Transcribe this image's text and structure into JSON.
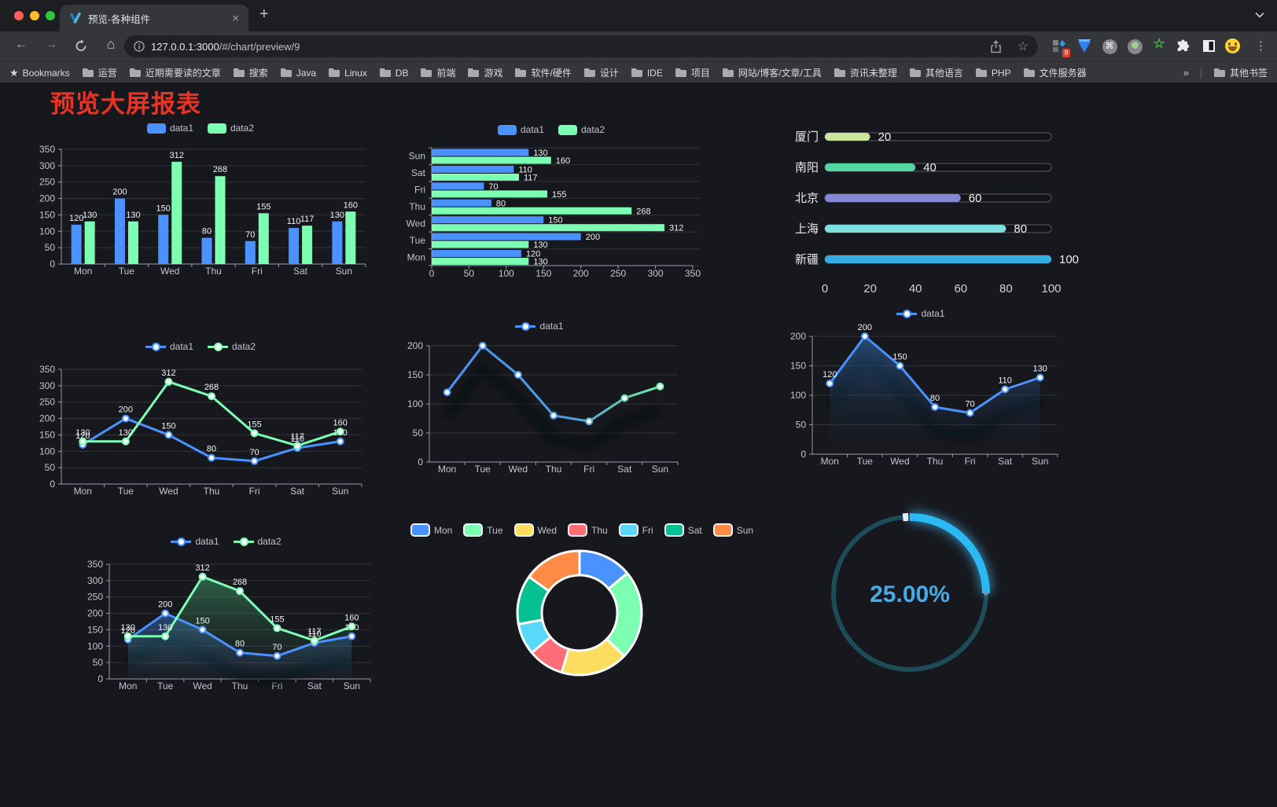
{
  "browser": {
    "tab": {
      "title": "预览-各种组件",
      "close": "×"
    },
    "new_tab": "+",
    "nav": {
      "back": "←",
      "forward": "→",
      "home": "⌂"
    },
    "address": {
      "host": "127.0.0.1:3000",
      "path": "/#/chart/preview/9"
    },
    "extensions_badge": "9",
    "ext_command": "⌘",
    "ext_star": "☆",
    "menu": "⋮",
    "bookmarks": {
      "label": "Bookmarks",
      "star": "★",
      "items": [
        "运营",
        "近期需要读的文章",
        "搜索",
        "Java",
        "Linux",
        "DB",
        "前端",
        "游戏",
        "软件/硬件",
        "设计",
        "IDE",
        "项目",
        "网站/博客/文章/工具",
        "资讯未整理",
        "其他语言",
        "PHP",
        "文件服务器"
      ],
      "overflow": "»",
      "other": "其他书签"
    }
  },
  "page": {
    "title": "预览大屏报表"
  },
  "chart_data": [
    {
      "id": "c1",
      "type": "bar",
      "legend_position": "top",
      "categories": [
        "Mon",
        "Tue",
        "Wed",
        "Thu",
        "Fri",
        "Sat",
        "Sun"
      ],
      "series": [
        {
          "name": "data1",
          "color": "#4992ff",
          "values": [
            120,
            200,
            150,
            80,
            70,
            110,
            130
          ]
        },
        {
          "name": "data2",
          "color": "#7cffb2",
          "values": [
            130,
            130,
            312,
            268,
            155,
            117,
            160
          ]
        }
      ],
      "ylim": [
        0,
        350
      ],
      "ytick_step": 50
    },
    {
      "id": "c2",
      "type": "bar-horizontal",
      "legend_position": "top",
      "categories": [
        "Mon",
        "Tue",
        "Wed",
        "Thu",
        "Fri",
        "Sat",
        "Sun"
      ],
      "series": [
        {
          "name": "data1",
          "color": "#4992ff",
          "values": [
            120,
            200,
            150,
            80,
            70,
            110,
            130
          ]
        },
        {
          "name": "data2",
          "color": "#7cffb2",
          "values": [
            130,
            130,
            312,
            268,
            155,
            117,
            160
          ]
        }
      ],
      "xlim": [
        0,
        350
      ],
      "xtick_step": 50
    },
    {
      "id": "c3",
      "type": "progress",
      "categories": [
        "厦门",
        "南阳",
        "北京",
        "上海",
        "新疆"
      ],
      "values": [
        20,
        40,
        60,
        80,
        100
      ],
      "colors": [
        "#cbe59b",
        "#52d7a0",
        "#8289d6",
        "#7edfe0",
        "#33ade0"
      ],
      "xlim": [
        0,
        100
      ],
      "xticks": [
        0,
        20,
        40,
        60,
        80,
        100
      ]
    },
    {
      "id": "c4",
      "type": "line",
      "legend_position": "top",
      "categories": [
        "Mon",
        "Tue",
        "Wed",
        "Thu",
        "Fri",
        "Sat",
        "Sun"
      ],
      "series": [
        {
          "name": "data1",
          "color": "#4992ff",
          "values": [
            120,
            200,
            150,
            80,
            70,
            110,
            130
          ]
        },
        {
          "name": "data2",
          "color": "#7cffb2",
          "values": [
            130,
            130,
            312,
            268,
            155,
            117,
            160
          ]
        }
      ],
      "ylim": [
        0,
        350
      ],
      "ytick_step": 50
    },
    {
      "id": "c5",
      "type": "line",
      "legend_position": "top",
      "shadow": true,
      "show_labels": false,
      "categories": [
        "Mon",
        "Tue",
        "Wed",
        "Thu",
        "Fri",
        "Sat",
        "Sun"
      ],
      "series": [
        {
          "name": "data1",
          "color": "#4992ff",
          "gradient_stops": [
            [
              "0%",
              "#4992ff"
            ],
            [
              "55%",
              "#4d9fe8"
            ],
            [
              "80%",
              "#63cfa8"
            ],
            [
              "100%",
              "#7cffb2"
            ]
          ],
          "values": [
            120,
            200,
            150,
            80,
            70,
            110,
            130
          ]
        }
      ],
      "ylim": [
        0,
        200
      ],
      "ytick_step": 50
    },
    {
      "id": "c6",
      "type": "line",
      "legend_position": "top",
      "shadow": true,
      "categories": [
        "Mon",
        "Tue",
        "Wed",
        "Thu",
        "Fri",
        "Sat",
        "Sun"
      ],
      "series": [
        {
          "name": "data1",
          "color": "#4992ff",
          "area": true,
          "area_from": "rgba(49,110,175,0.60)",
          "area_to": "rgba(20,35,60,0)",
          "values": [
            120,
            200,
            150,
            80,
            70,
            110,
            130
          ]
        }
      ],
      "ylim": [
        0,
        200
      ],
      "ytick_step": 50
    },
    {
      "id": "c7",
      "type": "line",
      "legend_position": "top",
      "shadow": true,
      "categories": [
        "Mon",
        "Tue",
        "Wed",
        "Thu",
        "Fri",
        "Sat",
        "Sun"
      ],
      "series": [
        {
          "name": "data1",
          "color": "#4992ff",
          "area": true,
          "area_from": "rgba(73,146,255,0.38)",
          "area_to": "rgba(73,146,255,0.02)",
          "values": [
            120,
            200,
            150,
            80,
            70,
            110,
            130
          ]
        },
        {
          "name": "data2",
          "color": "#7cffb2",
          "area": true,
          "area_from": "rgba(76,190,130,0.45)",
          "area_to": "rgba(40,80,60,0.03)",
          "values": [
            130,
            130,
            312,
            268,
            155,
            117,
            160
          ]
        }
      ],
      "ylim": [
        0,
        350
      ],
      "ytick_step": 50
    },
    {
      "id": "c8",
      "type": "pie",
      "legend_position": "top",
      "categories": [
        "Mon",
        "Tue",
        "Wed",
        "Thu",
        "Fri",
        "Sat",
        "Sun"
      ],
      "values": [
        120,
        200,
        150,
        80,
        70,
        110,
        130
      ],
      "colors": [
        "#4992ff",
        "#7cffb2",
        "#fddd60",
        "#ff6e76",
        "#58d9f9",
        "#05c091",
        "#ff8a45"
      ],
      "inner_radius_ratio": 0.61,
      "border_color": "#ffffff"
    },
    {
      "id": "c9",
      "type": "gauge",
      "value": 25,
      "max": 100,
      "display": "25.00%",
      "progress_color": "#2ab9f2",
      "track_color": "#1d4b58",
      "text_color": "#46aae9"
    }
  ]
}
